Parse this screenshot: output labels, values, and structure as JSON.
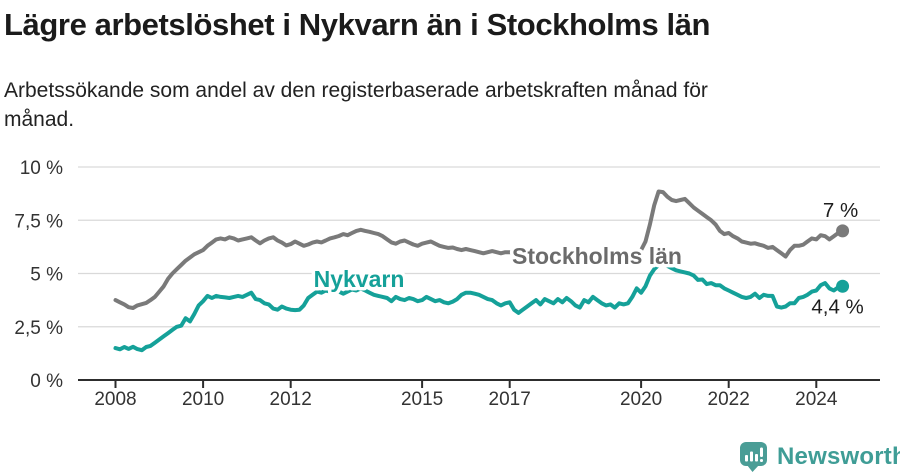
{
  "header": {
    "title": "Lägre arbetslöshet i Nykvarn än i Stockholms län",
    "subtitle_line1": "Arbetssökande som andel av den registerbaserade arbetskraften månad för",
    "subtitle_line2": "månad."
  },
  "footer": {
    "brand": "Newsworthy",
    "logo_icon": "bar-chart-speech-bubble-icon"
  },
  "colors": {
    "background": "#ffffff",
    "nykvarn": "#15a199",
    "stockholm": "#7a7a7a",
    "stockholm_label": "#6b6b6b",
    "end_label": "#1d1d1d",
    "axis_text": "#333333",
    "gridline": "#d9d9d9",
    "axis_line": "#2d2d2d",
    "brand_teal": "#4a9d96"
  },
  "chart_data": {
    "type": "line",
    "title": "Lägre arbetslöshet i Nykvarn än i Stockholms län",
    "subtitle": "Arbetssökande som andel av den registerbaserade arbetskraften månad för månad.",
    "unit": "%",
    "ylim": [
      0,
      10
    ],
    "grid": true,
    "x_start": 2008.0,
    "x_step_years": 0.1,
    "x_end": 2024.6,
    "x_ticks": [
      {
        "value": 2008,
        "label": "2008"
      },
      {
        "value": 2010,
        "label": "2010"
      },
      {
        "value": 2012,
        "label": "2012"
      },
      {
        "value": 2015,
        "label": "2015"
      },
      {
        "value": 2017,
        "label": "2017"
      },
      {
        "value": 2020,
        "label": "2020"
      },
      {
        "value": 2022,
        "label": "2022"
      },
      {
        "value": 2024,
        "label": "2024"
      }
    ],
    "y_ticks": [
      {
        "value": 0,
        "label": "0 %"
      },
      {
        "value": 2.5,
        "label": "2,5 %"
      },
      {
        "value": 5,
        "label": "5 %"
      },
      {
        "value": 7.5,
        "label": "7,5 %"
      },
      {
        "value": 10,
        "label": "10 %"
      }
    ],
    "series": [
      {
        "name": "Stockholms län",
        "end_label": "7 %",
        "end_value": 7.0,
        "values": [
          3.75,
          3.65,
          3.55,
          3.42,
          3.38,
          3.5,
          3.56,
          3.62,
          3.75,
          3.9,
          4.15,
          4.4,
          4.75,
          5.0,
          5.2,
          5.4,
          5.6,
          5.75,
          5.9,
          6.0,
          6.1,
          6.3,
          6.45,
          6.6,
          6.65,
          6.6,
          6.7,
          6.65,
          6.55,
          6.6,
          6.65,
          6.7,
          6.55,
          6.42,
          6.55,
          6.65,
          6.7,
          6.55,
          6.45,
          6.32,
          6.38,
          6.5,
          6.4,
          6.3,
          6.36,
          6.45,
          6.5,
          6.46,
          6.55,
          6.65,
          6.7,
          6.76,
          6.85,
          6.8,
          6.9,
          7.0,
          7.05,
          7.0,
          6.96,
          6.9,
          6.85,
          6.75,
          6.6,
          6.46,
          6.4,
          6.5,
          6.55,
          6.45,
          6.36,
          6.3,
          6.4,
          6.45,
          6.5,
          6.4,
          6.3,
          6.25,
          6.2,
          6.22,
          6.15,
          6.1,
          6.15,
          6.1,
          6.05,
          6.0,
          5.95,
          6.0,
          6.05,
          6.0,
          5.95,
          6.0,
          6.0,
          5.95,
          5.92,
          5.96,
          5.9,
          5.93,
          5.96,
          5.9,
          5.92,
          5.88,
          5.95,
          5.9,
          5.88,
          5.92,
          5.85,
          5.88,
          5.9,
          5.86,
          5.84,
          5.88,
          5.9,
          5.86,
          5.84,
          5.88,
          5.9,
          5.94,
          5.96,
          5.98,
          6.0,
          6.05,
          6.1,
          6.5,
          7.3,
          8.2,
          8.85,
          8.82,
          8.6,
          8.45,
          8.4,
          8.45,
          8.5,
          8.3,
          8.1,
          7.95,
          7.8,
          7.65,
          7.5,
          7.3,
          7.0,
          6.85,
          6.9,
          6.75,
          6.65,
          6.5,
          6.45,
          6.4,
          6.42,
          6.35,
          6.3,
          6.2,
          6.25,
          6.1,
          5.95,
          5.8,
          6.1,
          6.3,
          6.3,
          6.35,
          6.5,
          6.65,
          6.6,
          6.8,
          6.75,
          6.6,
          6.75,
          6.9,
          7.0
        ]
      },
      {
        "name": "Nykvarn",
        "end_label": "4,4 %",
        "end_value": 4.4,
        "values": [
          1.5,
          1.44,
          1.55,
          1.46,
          1.56,
          1.45,
          1.4,
          1.55,
          1.6,
          1.75,
          1.9,
          2.05,
          2.2,
          2.35,
          2.5,
          2.55,
          2.9,
          2.75,
          3.1,
          3.5,
          3.7,
          3.95,
          3.85,
          3.95,
          3.9,
          3.88,
          3.85,
          3.9,
          3.95,
          3.9,
          4.0,
          4.1,
          3.8,
          3.75,
          3.6,
          3.55,
          3.35,
          3.3,
          3.45,
          3.35,
          3.3,
          3.28,
          3.3,
          3.5,
          3.85,
          4.0,
          4.15,
          4.1,
          4.2,
          4.15,
          4.25,
          4.15,
          4.05,
          4.15,
          4.25,
          4.2,
          4.3,
          4.2,
          4.1,
          4.0,
          3.95,
          3.9,
          3.85,
          3.7,
          3.9,
          3.8,
          3.75,
          3.85,
          3.8,
          3.7,
          3.75,
          3.9,
          3.8,
          3.7,
          3.75,
          3.65,
          3.6,
          3.68,
          3.8,
          4.0,
          4.1,
          4.1,
          4.05,
          4.0,
          3.9,
          3.8,
          3.75,
          3.6,
          3.5,
          3.6,
          3.65,
          3.3,
          3.15,
          3.3,
          3.45,
          3.6,
          3.75,
          3.55,
          3.8,
          3.7,
          3.6,
          3.8,
          3.65,
          3.85,
          3.7,
          3.5,
          3.4,
          3.75,
          3.65,
          3.9,
          3.75,
          3.6,
          3.5,
          3.55,
          3.4,
          3.6,
          3.55,
          3.6,
          3.9,
          4.3,
          4.1,
          4.4,
          4.9,
          5.2,
          5.4,
          5.45,
          5.35,
          5.25,
          5.15,
          5.1,
          5.05,
          5.0,
          4.9,
          4.7,
          4.72,
          4.5,
          4.55,
          4.45,
          4.45,
          4.3,
          4.2,
          4.1,
          4.0,
          3.9,
          3.85,
          3.9,
          4.05,
          3.85,
          4.0,
          3.95,
          3.95,
          3.45,
          3.4,
          3.45,
          3.6,
          3.6,
          3.85,
          3.9,
          4.0,
          4.15,
          4.2,
          4.45,
          4.55,
          4.3,
          4.2,
          4.35,
          4.4
        ]
      }
    ],
    "legend_position": "inline-labels"
  }
}
